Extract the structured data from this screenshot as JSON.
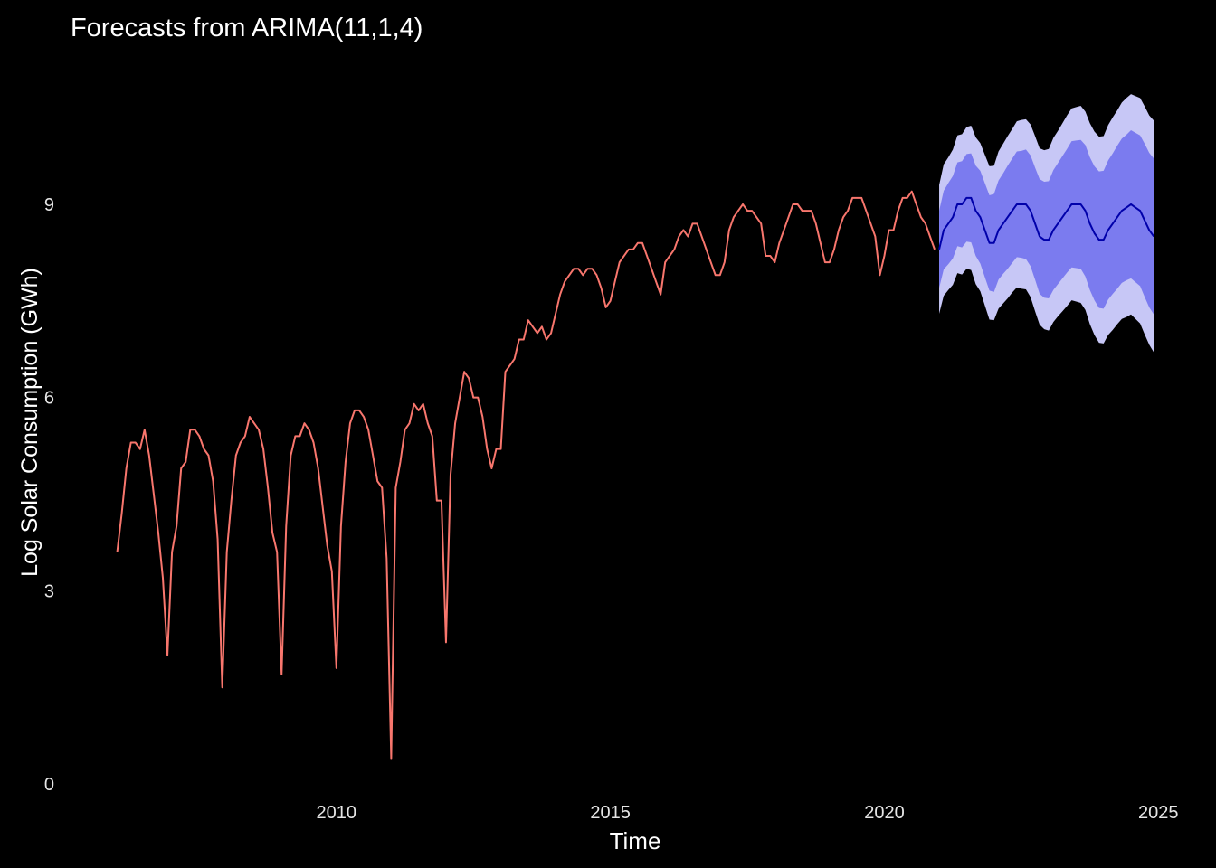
{
  "chart_data": {
    "type": "forecast",
    "title": "Forecasts from ARIMA(11,1,4)",
    "x_label": "Time",
    "y_label": "Log Solar Consumption (GWh)",
    "xlim": [
      2005.05,
      2025.87
    ],
    "xticks": [
      2010,
      2015,
      2020,
      2025
    ],
    "ylim": [
      -0.21,
      11.4
    ],
    "yticks": [
      0,
      3,
      6,
      9
    ],
    "grid": false,
    "observed": {
      "color": "#f8766d",
      "x": [
        2006,
        2006.083,
        2006.167,
        2006.25,
        2006.333,
        2006.417,
        2006.5,
        2006.583,
        2006.667,
        2006.75,
        2006.833,
        2006.917,
        2007,
        2007.083,
        2007.167,
        2007.25,
        2007.333,
        2007.417,
        2007.5,
        2007.583,
        2007.667,
        2007.75,
        2007.833,
        2007.917,
        2008,
        2008.083,
        2008.167,
        2008.25,
        2008.333,
        2008.417,
        2008.5,
        2008.583,
        2008.667,
        2008.75,
        2008.833,
        2008.917,
        2009,
        2009.083,
        2009.167,
        2009.25,
        2009.333,
        2009.417,
        2009.5,
        2009.583,
        2009.667,
        2009.75,
        2009.833,
        2009.917,
        2010,
        2010.083,
        2010.167,
        2010.25,
        2010.333,
        2010.417,
        2010.5,
        2010.583,
        2010.667,
        2010.75,
        2010.833,
        2010.917,
        2011,
        2011.083,
        2011.167,
        2011.25,
        2011.333,
        2011.417,
        2011.5,
        2011.583,
        2011.667,
        2011.75,
        2011.833,
        2011.917,
        2012,
        2012.083,
        2012.167,
        2012.25,
        2012.333,
        2012.417,
        2012.5,
        2012.583,
        2012.667,
        2012.75,
        2012.833,
        2012.917,
        2013,
        2013.083,
        2013.167,
        2013.25,
        2013.333,
        2013.417,
        2013.5,
        2013.583,
        2013.667,
        2013.75,
        2013.833,
        2013.917,
        2014,
        2014.083,
        2014.167,
        2014.25,
        2014.333,
        2014.417,
        2014.5,
        2014.583,
        2014.667,
        2014.75,
        2014.833,
        2014.917,
        2015,
        2015.083,
        2015.167,
        2015.25,
        2015.333,
        2015.417,
        2015.5,
        2015.583,
        2015.667,
        2015.75,
        2015.833,
        2015.917,
        2016,
        2016.083,
        2016.167,
        2016.25,
        2016.333,
        2016.417,
        2016.5,
        2016.583,
        2016.667,
        2016.75,
        2016.833,
        2016.917,
        2017,
        2017.083,
        2017.167,
        2017.25,
        2017.333,
        2017.417,
        2017.5,
        2017.583,
        2017.667,
        2017.75,
        2017.833,
        2017.917,
        2018,
        2018.083,
        2018.167,
        2018.25,
        2018.333,
        2018.417,
        2018.5,
        2018.583,
        2018.667,
        2018.75,
        2018.833,
        2018.917,
        2019,
        2019.083,
        2019.167,
        2019.25,
        2019.333,
        2019.417,
        2019.5,
        2019.583,
        2019.667,
        2019.75,
        2019.833,
        2019.917,
        2020,
        2020.083,
        2020.167,
        2020.25,
        2020.333,
        2020.417,
        2020.5,
        2020.583,
        2020.667,
        2020.75,
        2020.833,
        2020.917
      ],
      "values": [
        3.6,
        4.2,
        4.9,
        5.3,
        5.3,
        5.2,
        5.5,
        5.1,
        4.5,
        3.9,
        3.2,
        2.0,
        3.6,
        4.0,
        4.9,
        5.0,
        5.5,
        5.5,
        5.4,
        5.2,
        5.1,
        4.7,
        3.8,
        1.5,
        3.6,
        4.4,
        5.1,
        5.3,
        5.4,
        5.7,
        5.6,
        5.5,
        5.2,
        4.6,
        3.9,
        3.6,
        1.7,
        4.0,
        5.1,
        5.4,
        5.4,
        5.6,
        5.5,
        5.3,
        4.9,
        4.3,
        3.7,
        3.3,
        1.8,
        4.0,
        5.0,
        5.6,
        5.8,
        5.8,
        5.7,
        5.5,
        5.1,
        4.7,
        4.6,
        3.5,
        0.4,
        4.6,
        5.0,
        5.5,
        5.6,
        5.9,
        5.8,
        5.9,
        5.6,
        5.4,
        4.4,
        4.4,
        2.2,
        4.8,
        5.6,
        6.0,
        6.4,
        6.3,
        6.0,
        6.0,
        5.7,
        5.2,
        4.9,
        5.2,
        5.2,
        6.4,
        6.5,
        6.6,
        6.9,
        6.9,
        7.2,
        7.1,
        7.0,
        7.1,
        6.9,
        7.0,
        7.3,
        7.6,
        7.8,
        7.9,
        8.0,
        8.0,
        7.9,
        8.0,
        8.0,
        7.9,
        7.7,
        7.4,
        7.5,
        7.8,
        8.1,
        8.2,
        8.3,
        8.3,
        8.4,
        8.4,
        8.2,
        8.0,
        7.8,
        7.6,
        8.1,
        8.2,
        8.3,
        8.5,
        8.6,
        8.5,
        8.7,
        8.7,
        8.5,
        8.3,
        8.1,
        7.9,
        7.9,
        8.1,
        8.6,
        8.8,
        8.9,
        9.0,
        8.9,
        8.9,
        8.8,
        8.7,
        8.2,
        8.2,
        8.1,
        8.4,
        8.6,
        8.8,
        9.0,
        9.0,
        8.9,
        8.9,
        8.9,
        8.7,
        8.4,
        8.1,
        8.1,
        8.3,
        8.6,
        8.8,
        8.9,
        9.1,
        9.1,
        9.1,
        8.9,
        8.7,
        8.5,
        7.9,
        8.2,
        8.6,
        8.6,
        8.9,
        9.1,
        9.1,
        9.2,
        9.0,
        8.8,
        8.7,
        8.5,
        8.3
      ]
    },
    "forecast": {
      "color": "#0000aa",
      "color80": "#7b7bef",
      "color95": "#c7c7f6",
      "x": [
        2021,
        2021.083,
        2021.167,
        2021.25,
        2021.333,
        2021.417,
        2021.5,
        2021.583,
        2021.667,
        2021.75,
        2021.833,
        2021.917,
        2022,
        2022.083,
        2022.167,
        2022.25,
        2022.333,
        2022.417,
        2022.5,
        2022.583,
        2022.667,
        2022.75,
        2022.833,
        2022.917,
        2023,
        2023.083,
        2023.167,
        2023.25,
        2023.333,
        2023.417,
        2023.5,
        2023.583,
        2023.667,
        2023.75,
        2023.833,
        2023.917,
        2024,
        2024.083,
        2024.167,
        2024.25,
        2024.333,
        2024.417,
        2024.5,
        2024.583,
        2024.667,
        2024.75,
        2024.833,
        2024.917
      ],
      "mean": [
        8.3,
        8.6,
        8.7,
        8.8,
        9.0,
        9.0,
        9.1,
        9.1,
        8.9,
        8.8,
        8.6,
        8.4,
        8.4,
        8.6,
        8.7,
        8.8,
        8.9,
        9.0,
        9.0,
        9.0,
        8.9,
        8.7,
        8.5,
        8.45,
        8.45,
        8.6,
        8.7,
        8.8,
        8.9,
        9.0,
        9.0,
        9.0,
        8.9,
        8.7,
        8.55,
        8.45,
        8.45,
        8.6,
        8.7,
        8.8,
        8.9,
        8.95,
        9.0,
        8.95,
        8.9,
        8.75,
        8.6,
        8.5
      ],
      "lower80": [
        7.7,
        7.99,
        8.07,
        8.16,
        8.35,
        8.33,
        8.42,
        8.41,
        8.2,
        8.08,
        7.87,
        7.66,
        7.64,
        7.83,
        7.92,
        8.0,
        8.09,
        8.18,
        8.17,
        8.15,
        8.04,
        7.83,
        7.61,
        7.55,
        7.54,
        7.67,
        7.76,
        7.85,
        7.94,
        8.02,
        8.01,
        8.0,
        7.88,
        7.67,
        7.51,
        7.39,
        7.38,
        7.52,
        7.61,
        7.69,
        7.78,
        7.82,
        7.85,
        7.79,
        7.73,
        7.56,
        7.4,
        7.29
      ],
      "upper80": [
        8.9,
        9.21,
        9.33,
        9.44,
        9.65,
        9.67,
        9.78,
        9.79,
        9.6,
        9.52,
        9.33,
        9.14,
        9.16,
        9.37,
        9.48,
        9.6,
        9.71,
        9.82,
        9.83,
        9.85,
        9.76,
        9.57,
        9.39,
        9.35,
        9.36,
        9.53,
        9.64,
        9.75,
        9.86,
        9.98,
        9.99,
        10.0,
        9.92,
        9.73,
        9.59,
        9.51,
        9.52,
        9.68,
        9.79,
        9.91,
        10.02,
        10.08,
        10.15,
        10.11,
        10.07,
        9.94,
        9.8,
        9.71
      ],
      "lower95": [
        7.3,
        7.58,
        7.67,
        7.75,
        7.93,
        7.91,
        8.0,
        7.98,
        7.76,
        7.65,
        7.43,
        7.21,
        7.2,
        7.38,
        7.46,
        7.54,
        7.63,
        7.71,
        7.69,
        7.68,
        7.56,
        7.34,
        7.13,
        7.06,
        7.04,
        7.17,
        7.26,
        7.34,
        7.42,
        7.51,
        7.49,
        7.47,
        7.36,
        7.14,
        6.97,
        6.85,
        6.84,
        6.97,
        7.05,
        7.14,
        7.22,
        7.25,
        7.29,
        7.22,
        7.15,
        6.98,
        6.82,
        6.7
      ],
      "upper95": [
        9.3,
        9.62,
        9.73,
        9.85,
        10.07,
        10.09,
        10.2,
        10.22,
        10.04,
        9.95,
        9.77,
        9.59,
        9.6,
        9.82,
        9.94,
        10.06,
        10.17,
        10.29,
        10.31,
        10.32,
        10.24,
        10.06,
        9.87,
        9.84,
        9.86,
        10.03,
        10.14,
        10.26,
        10.38,
        10.49,
        10.51,
        10.53,
        10.44,
        10.26,
        10.13,
        10.05,
        10.06,
        10.23,
        10.35,
        10.46,
        10.58,
        10.65,
        10.71,
        10.68,
        10.65,
        10.52,
        10.38,
        10.3
      ]
    }
  }
}
